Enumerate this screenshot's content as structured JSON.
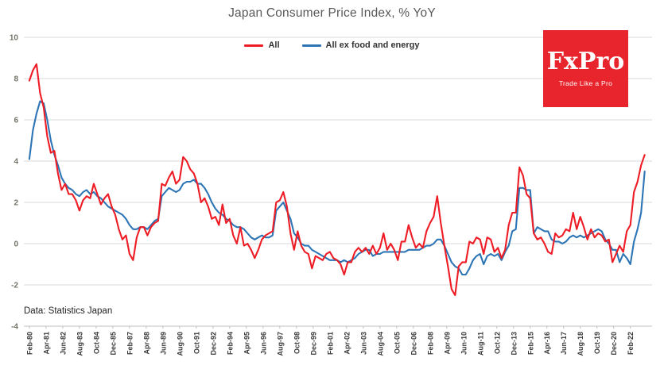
{
  "title": "Japan Consumer Price Index, % YoY",
  "source_note": "Data: Statistics Japan",
  "logo": {
    "name": "FxPro",
    "tagline": "Trade Like a Pro",
    "bg_color": "#e8252d"
  },
  "legend": [
    {
      "label": "All",
      "color": "#ee1c25"
    },
    {
      "label": "All ex food and energy",
      "color": "#2e75b6"
    }
  ],
  "chart_data": {
    "type": "line",
    "title": "Japan Consumer Price Index, % YoY",
    "xlabel": "",
    "ylabel": "",
    "ylim": [
      -4,
      10
    ],
    "xlim": [
      1979.7,
      2023.6
    ],
    "grid": "horizontal",
    "legend_position": "top-center",
    "y_ticks": [
      10,
      8,
      6,
      4,
      2,
      0,
      -2,
      -4
    ],
    "x_tick_start_year": 1980.083,
    "x_tick_step_years": 1.1667,
    "x_tick_labels": [
      "Feb-80",
      "Apr-81",
      "Jun-82",
      "Aug-83",
      "Oct-84",
      "Dec-85",
      "Feb-87",
      "Apr-88",
      "Jun-89",
      "Aug-90",
      "Oct-91",
      "Dec-92",
      "Feb-94",
      "Apr-95",
      "Jun-96",
      "Aug-97",
      "Oct-98",
      "Dec-99",
      "Feb-01",
      "Apr-02",
      "Jun-03",
      "Aug-04",
      "Oct-05",
      "Dec-06",
      "Feb-08",
      "Apr-09",
      "Jun-10",
      "Aug-11",
      "Oct-12",
      "Dec-13",
      "Feb-15",
      "Apr-16",
      "Jun-17",
      "Aug-18",
      "Oct-19",
      "Dec-20",
      "Feb-22"
    ],
    "x_start_year": 1980.083,
    "x_step_years": 0.25,
    "sampling_note": "quarterly (Feb/May/Aug/Nov) approximations of monthly YoY %, Feb-1980 to Feb-2023",
    "series": [
      {
        "name": "All",
        "color": "#ee1c25",
        "values": [
          7.9,
          8.4,
          8.7,
          7.3,
          6.6,
          5.2,
          4.4,
          4.5,
          3.4,
          2.6,
          2.9,
          2.4,
          2.4,
          2.1,
          1.6,
          2.1,
          2.3,
          2.2,
          2.9,
          2.4,
          1.9,
          2.2,
          2.4,
          1.8,
          1.4,
          0.7,
          0.2,
          0.4,
          -0.5,
          -0.8,
          0.3,
          0.8,
          0.8,
          0.4,
          0.8,
          1.0,
          1.1,
          2.9,
          2.8,
          3.2,
          3.5,
          2.9,
          3.1,
          4.2,
          4.0,
          3.6,
          3.4,
          2.9,
          2.0,
          2.2,
          1.8,
          1.2,
          1.3,
          0.9,
          1.9,
          1.0,
          1.2,
          0.4,
          0.0,
          0.8,
          -0.1,
          0.0,
          -0.3,
          -0.7,
          -0.3,
          0.2,
          0.4,
          0.5,
          0.6,
          2.0,
          2.1,
          2.5,
          1.8,
          0.5,
          -0.3,
          0.6,
          -0.1,
          -0.4,
          -0.5,
          -1.2,
          -0.6,
          -0.7,
          -0.8,
          -0.5,
          -0.4,
          -0.7,
          -0.8,
          -1.0,
          -1.5,
          -0.9,
          -0.9,
          -0.4,
          -0.2,
          -0.4,
          -0.2,
          -0.5,
          -0.1,
          -0.5,
          -0.2,
          0.5,
          -0.3,
          0.0,
          -0.3,
          -0.8,
          0.1,
          0.1,
          0.9,
          0.3,
          -0.2,
          0.0,
          -0.2,
          0.6,
          1.0,
          1.3,
          2.3,
          1.0,
          -0.1,
          -1.1,
          -2.2,
          -2.5,
          -1.1,
          -0.9,
          -0.9,
          0.1,
          0.0,
          0.3,
          0.2,
          -0.5,
          0.3,
          0.2,
          -0.4,
          -0.2,
          -0.7,
          -0.3,
          0.9,
          1.5,
          1.5,
          3.7,
          3.3,
          2.4,
          2.2,
          0.5,
          0.2,
          0.3,
          0.0,
          -0.4,
          -0.5,
          0.5,
          0.3,
          0.4,
          0.7,
          0.6,
          1.5,
          0.7,
          1.3,
          0.8,
          0.2,
          0.7,
          0.3,
          0.5,
          0.4,
          0.1,
          0.2,
          -0.9,
          -0.5,
          -0.1,
          -0.4,
          0.6,
          0.9,
          2.5,
          3.0,
          3.8,
          4.3
        ]
      },
      {
        "name": "All ex food and energy",
        "color": "#2e75b6",
        "values": [
          4.1,
          5.5,
          6.3,
          6.9,
          6.8,
          6.0,
          5.0,
          4.3,
          3.8,
          3.2,
          2.9,
          2.7,
          2.6,
          2.4,
          2.3,
          2.5,
          2.6,
          2.4,
          2.5,
          2.3,
          2.2,
          2.0,
          1.8,
          1.7,
          1.6,
          1.5,
          1.4,
          1.2,
          0.9,
          0.7,
          0.7,
          0.8,
          0.8,
          0.7,
          0.9,
          1.1,
          1.2,
          2.3,
          2.5,
          2.7,
          2.6,
          2.5,
          2.6,
          2.9,
          3.0,
          3.0,
          3.1,
          2.9,
          2.9,
          2.7,
          2.4,
          2.0,
          1.7,
          1.5,
          1.4,
          1.2,
          1.1,
          0.9,
          0.8,
          0.8,
          0.7,
          0.5,
          0.3,
          0.2,
          0.3,
          0.4,
          0.3,
          0.3,
          0.4,
          1.6,
          1.8,
          2.0,
          1.6,
          1.2,
          0.5,
          0.3,
          0.0,
          -0.1,
          -0.1,
          -0.3,
          -0.4,
          -0.5,
          -0.6,
          -0.7,
          -0.8,
          -0.8,
          -0.8,
          -0.9,
          -0.8,
          -0.9,
          -0.8,
          -0.7,
          -0.5,
          -0.4,
          -0.3,
          -0.3,
          -0.6,
          -0.5,
          -0.5,
          -0.4,
          -0.4,
          -0.4,
          -0.4,
          -0.4,
          -0.4,
          -0.4,
          -0.3,
          -0.3,
          -0.3,
          -0.3,
          -0.2,
          -0.1,
          -0.1,
          0.0,
          0.2,
          0.2,
          -0.1,
          -0.5,
          -0.9,
          -1.1,
          -1.2,
          -1.5,
          -1.5,
          -1.2,
          -0.8,
          -0.6,
          -0.5,
          -1.0,
          -0.6,
          -0.5,
          -0.6,
          -0.5,
          -0.8,
          -0.4,
          -0.1,
          0.6,
          0.7,
          2.7,
          2.7,
          2.6,
          2.6,
          0.5,
          0.8,
          0.7,
          0.6,
          0.6,
          0.2,
          0.1,
          0.1,
          0.0,
          0.1,
          0.3,
          0.4,
          0.3,
          0.4,
          0.3,
          0.4,
          0.5,
          0.6,
          0.7,
          0.6,
          0.2,
          0.0,
          -0.3,
          -0.3,
          -0.9,
          -0.5,
          -0.7,
          -1.0,
          0.1,
          0.7,
          1.5,
          3.5
        ]
      }
    ]
  }
}
